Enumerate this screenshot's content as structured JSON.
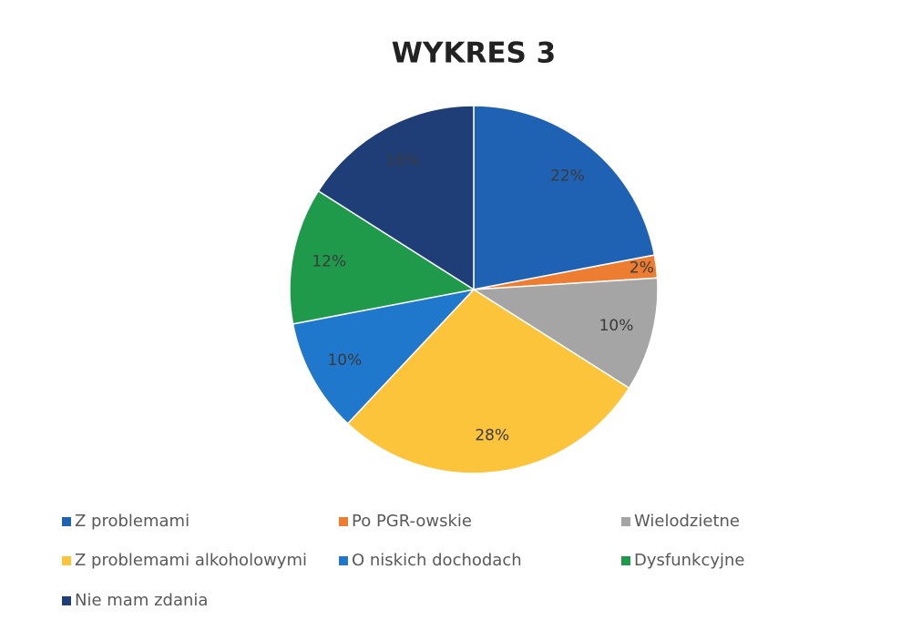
{
  "chart_data": {
    "type": "pie",
    "title": "WYKRES 3",
    "categories": [
      "Z problemami",
      "Po PGR-owskie",
      "Wielodzietne",
      "Z problemami alkoholowymi",
      "O niskich dochodach",
      "Dysfunkcyjne",
      "Nie mam zdania"
    ],
    "values": [
      22,
      2,
      10,
      28,
      10,
      12,
      16
    ],
    "value_labels": [
      "22%",
      "2%",
      "10%",
      "28%",
      "10%",
      "12%",
      "16%"
    ],
    "colors": [
      "#1f62b3",
      "#ed7d31",
      "#a5a5a5",
      "#fcc43a",
      "#2078cc",
      "#1f9a4a",
      "#1f3e78"
    ],
    "legend": "bottom"
  }
}
